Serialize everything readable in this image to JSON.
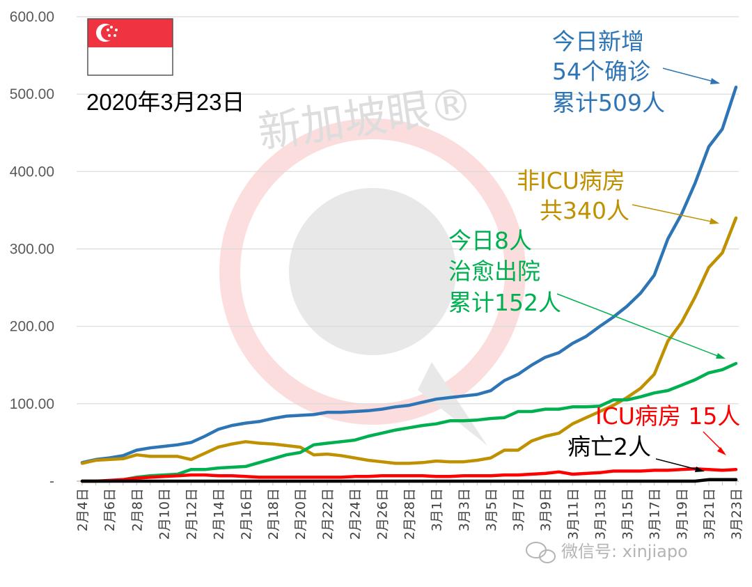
{
  "date_label": "2020年3月23日",
  "watermark_text": "新加坡眼®",
  "wechat_text": "微信号: xinjiapo",
  "colors": {
    "confirmed": "#2E75B6",
    "ward": "#BF9000",
    "discharged": "#00B050",
    "icu": "#FF0000",
    "deaths": "#000000",
    "flag_red": "#EF3340",
    "flag_white": "#FFFFFF",
    "grid": "#D9D9D9",
    "axis": "#BFBFBF",
    "text": "#000000"
  },
  "annotations": {
    "confirmed": [
      "今日新增",
      "54个确诊",
      "累计509人"
    ],
    "ward": [
      "非ICU病房",
      "共340人"
    ],
    "discharged": [
      "今日8人",
      "治愈出院",
      "累计152人"
    ],
    "icu": [
      "ICU病房 15人"
    ],
    "deaths": [
      "病亡2人"
    ]
  },
  "chart_data": {
    "type": "line",
    "title": "",
    "xlabel": "",
    "ylabel": "",
    "ylim": [
      0,
      600
    ],
    "yticks": [
      "-",
      "100.00",
      "200.00",
      "300.00",
      "400.00",
      "500.00",
      "600.00"
    ],
    "grid": true,
    "legend": "none",
    "x": [
      "2月4日",
      "2月5日",
      "2月6日",
      "2月7日",
      "2月8日",
      "2月9日",
      "2月10日",
      "2月11日",
      "2月12日",
      "2月13日",
      "2月14日",
      "2月15日",
      "2月16日",
      "2月17日",
      "2月18日",
      "2月19日",
      "2月20日",
      "2月21日",
      "2月22日",
      "2月23日",
      "2月24日",
      "2月25日",
      "2月26日",
      "2月27日",
      "2月28日",
      "2月29日",
      "3月1日",
      "3月2日",
      "3月3日",
      "3月4日",
      "3月5日",
      "3月6日",
      "3月7日",
      "3月8日",
      "3月9日",
      "3月10日",
      "3月11日",
      "3月12日",
      "3月13日",
      "3月14日",
      "3月15日",
      "3月16日",
      "3月17日",
      "3月18日",
      "3月19日",
      "3月20日",
      "3月21日",
      "3月22日",
      "3月23日"
    ],
    "x_tick_labels": [
      "2月4日",
      "2月6日",
      "2月8日",
      "2月10日",
      "2月12日",
      "2月14日",
      "2月16日",
      "2月18日",
      "2月20日",
      "2月22日",
      "2月24日",
      "2月26日",
      "2月28日",
      "3月1日",
      "3月3日",
      "3月5日",
      "3月7日",
      "3月9日",
      "3月11日",
      "3月13日",
      "3月15日",
      "3月17日",
      "3月19日",
      "3月21日",
      "3月23日"
    ],
    "series": [
      {
        "key": "confirmed",
        "values": [
          24,
          28,
          30,
          33,
          40,
          43,
          45,
          47,
          50,
          58,
          67,
          72,
          75,
          77,
          81,
          84,
          85,
          86,
          89,
          89,
          90,
          91,
          93,
          96,
          98,
          102,
          106,
          108,
          110,
          112,
          117,
          130,
          138,
          150,
          160,
          166,
          178,
          187,
          200,
          212,
          226,
          243,
          266,
          313,
          345,
          385,
          432,
          455,
          509
        ]
      },
      {
        "key": "ward",
        "values": [
          23,
          27,
          28,
          29,
          34,
          32,
          32,
          32,
          28,
          36,
          44,
          48,
          51,
          49,
          48,
          46,
          44,
          34,
          35,
          33,
          30,
          27,
          25,
          23,
          23,
          24,
          26,
          25,
          25,
          27,
          30,
          40,
          40,
          52,
          58,
          62,
          74,
          82,
          90,
          98,
          108,
          120,
          138,
          181,
          205,
          238,
          276,
          295,
          340
        ]
      },
      {
        "key": "discharged",
        "values": [
          0,
          0,
          0,
          2,
          5,
          7,
          8,
          9,
          15,
          15,
          17,
          18,
          19,
          24,
          29,
          34,
          37,
          47,
          49,
          51,
          53,
          58,
          62,
          66,
          69,
          72,
          74,
          78,
          78,
          79,
          81,
          82,
          90,
          90,
          93,
          93,
          96,
          96,
          97,
          105,
          105,
          109,
          114,
          117,
          124,
          131,
          140,
          144,
          152
        ]
      },
      {
        "key": "icu",
        "values": [
          0,
          0,
          1,
          2,
          4,
          5,
          6,
          7,
          8,
          8,
          7,
          7,
          6,
          5,
          5,
          5,
          5,
          5,
          5,
          5,
          6,
          6,
          7,
          7,
          7,
          7,
          6,
          6,
          7,
          7,
          7,
          8,
          8,
          9,
          10,
          12,
          9,
          10,
          11,
          13,
          13,
          13,
          14,
          14,
          15,
          16,
          15,
          14,
          15
        ]
      },
      {
        "key": "deaths",
        "values": [
          0,
          0,
          0,
          0,
          0,
          0,
          0,
          0,
          0,
          0,
          0,
          0,
          0,
          0,
          0,
          0,
          0,
          0,
          0,
          0,
          0,
          0,
          0,
          0,
          0,
          0,
          0,
          0,
          0,
          0,
          0,
          0,
          0,
          0,
          0,
          0,
          0,
          0,
          0,
          0,
          0,
          0,
          0,
          0,
          0,
          0,
          2,
          2,
          2
        ]
      }
    ]
  }
}
